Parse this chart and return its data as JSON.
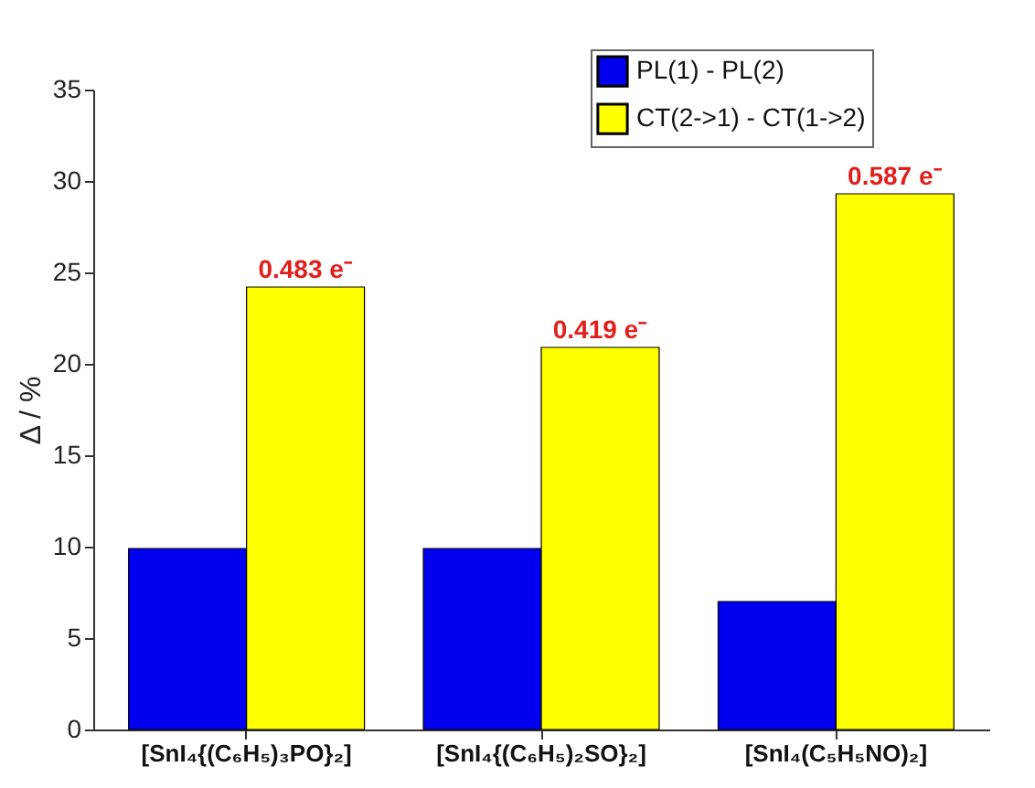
{
  "chart_data": {
    "type": "bar",
    "ylabel": "Δ / %",
    "categories": [
      "[SnI₄{(C₆H₅)₃PO}₂]",
      "[SnI₄{(C₆H₅)₂SO}₂]",
      "[SnI₄(C₅H₅NO)₂]"
    ],
    "series": [
      {
        "name": "PL(1) - PL(2)",
        "color": "#0000ee",
        "values": [
          9.9,
          9.9,
          7.0
        ]
      },
      {
        "name": "CT(2->1) - CT(1->2)",
        "color": "#ffff00",
        "values": [
          24.2,
          20.9,
          29.3
        ]
      }
    ],
    "annotations": [
      {
        "text": "0.483 e⁻",
        "x": "[SnI₄{(C₆H₅)₃PO}₂]",
        "y": 24.2
      },
      {
        "text": "0.419 e⁻",
        "x": "[SnI₄{(C₆H₅)₂SO}₂]",
        "y": 20.9
      },
      {
        "text": "0.587 e⁻",
        "x": "[SnI₄(C₅H₅NO)₂]",
        "y": 29.3
      }
    ],
    "ylim": [
      0,
      35
    ],
    "yticks": [
      0,
      5,
      10,
      15,
      20,
      25,
      30,
      35
    ],
    "legend": "top right"
  }
}
